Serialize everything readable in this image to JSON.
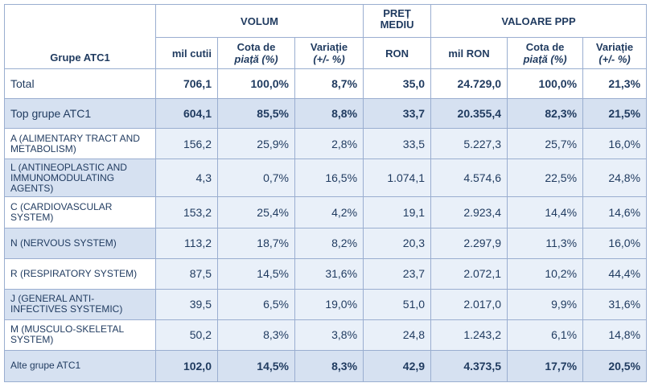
{
  "header": {
    "label_col": "Grupe ATC1",
    "groups": {
      "volum": "VOLUM",
      "pret": "PREȚ MEDIU",
      "valoare": "VALOARE PPP"
    },
    "sub": {
      "mil_cutii": "mil cutii",
      "cota_de": "Cota de",
      "piata": "piață (%)",
      "variatie": "Variație",
      "variatie_unit": "(+/- %)",
      "ron": "RON",
      "mil_ron": "mil RON"
    }
  },
  "rows": [
    {
      "label": "Total",
      "vol": "706,1",
      "cota_vol": "100,0%",
      "var_vol": "8,7%",
      "pret": "35,0",
      "val": "24.729,0",
      "cota_val": "100,0%",
      "var_val": "21,3%"
    },
    {
      "label": "Top grupe ATC1",
      "vol": "604,1",
      "cota_vol": "85,5%",
      "var_vol": "8,8%",
      "pret": "33,7",
      "val": "20.355,4",
      "cota_val": "82,3%",
      "var_val": "21,5%"
    },
    {
      "label": "A (ALIMENTARY TRACT AND METABOLISM)",
      "vol": "156,2",
      "cota_vol": "25,9%",
      "var_vol": "2,8%",
      "pret": "33,5",
      "val": "5.227,3",
      "cota_val": "25,7%",
      "var_val": "16,0%"
    },
    {
      "label": "L (ANTINEOPLASTIC AND IMMUNOMODULATING AGENTS)",
      "vol": "4,3",
      "cota_vol": "0,7%",
      "var_vol": "16,5%",
      "pret": "1.074,1",
      "val": "4.574,6",
      "cota_val": "22,5%",
      "var_val": "24,8%"
    },
    {
      "label": "C (CARDIOVASCULAR SYSTEM)",
      "vol": "153,2",
      "cota_vol": "25,4%",
      "var_vol": "4,2%",
      "pret": "19,1",
      "val": "2.923,4",
      "cota_val": "14,4%",
      "var_val": "14,6%"
    },
    {
      "label": "N (NERVOUS SYSTEM)",
      "vol": "113,2",
      "cota_vol": "18,7%",
      "var_vol": "8,2%",
      "pret": "20,3",
      "val": "2.297,9",
      "cota_val": "11,3%",
      "var_val": "16,0%"
    },
    {
      "label": "R (RESPIRATORY SYSTEM)",
      "vol": "87,5",
      "cota_vol": "14,5%",
      "var_vol": "31,6%",
      "pret": "23,7",
      "val": "2.072,1",
      "cota_val": "10,2%",
      "var_val": "44,4%"
    },
    {
      "label": "J (GENERAL ANTI-INFECTIVES SYSTEMIC)",
      "vol": "39,5",
      "cota_vol": "6,5%",
      "var_vol": "19,0%",
      "pret": "51,0",
      "val": "2.017,0",
      "cota_val": "9,9%",
      "var_val": "31,6%"
    },
    {
      "label": "M (MUSCULO-SKELETAL SYSTEM)",
      "vol": "50,2",
      "cota_vol": "8,3%",
      "var_vol": "3,8%",
      "pret": "24,8",
      "val": "1.243,2",
      "cota_val": "6,1%",
      "var_val": "14,8%"
    },
    {
      "label": "Alte grupe ATC1",
      "vol": "102,0",
      "cota_vol": "14,5%",
      "var_vol": "8,3%",
      "pret": "42,9",
      "val": "4.373,5",
      "cota_val": "17,7%",
      "var_val": "20,5%"
    }
  ]
}
